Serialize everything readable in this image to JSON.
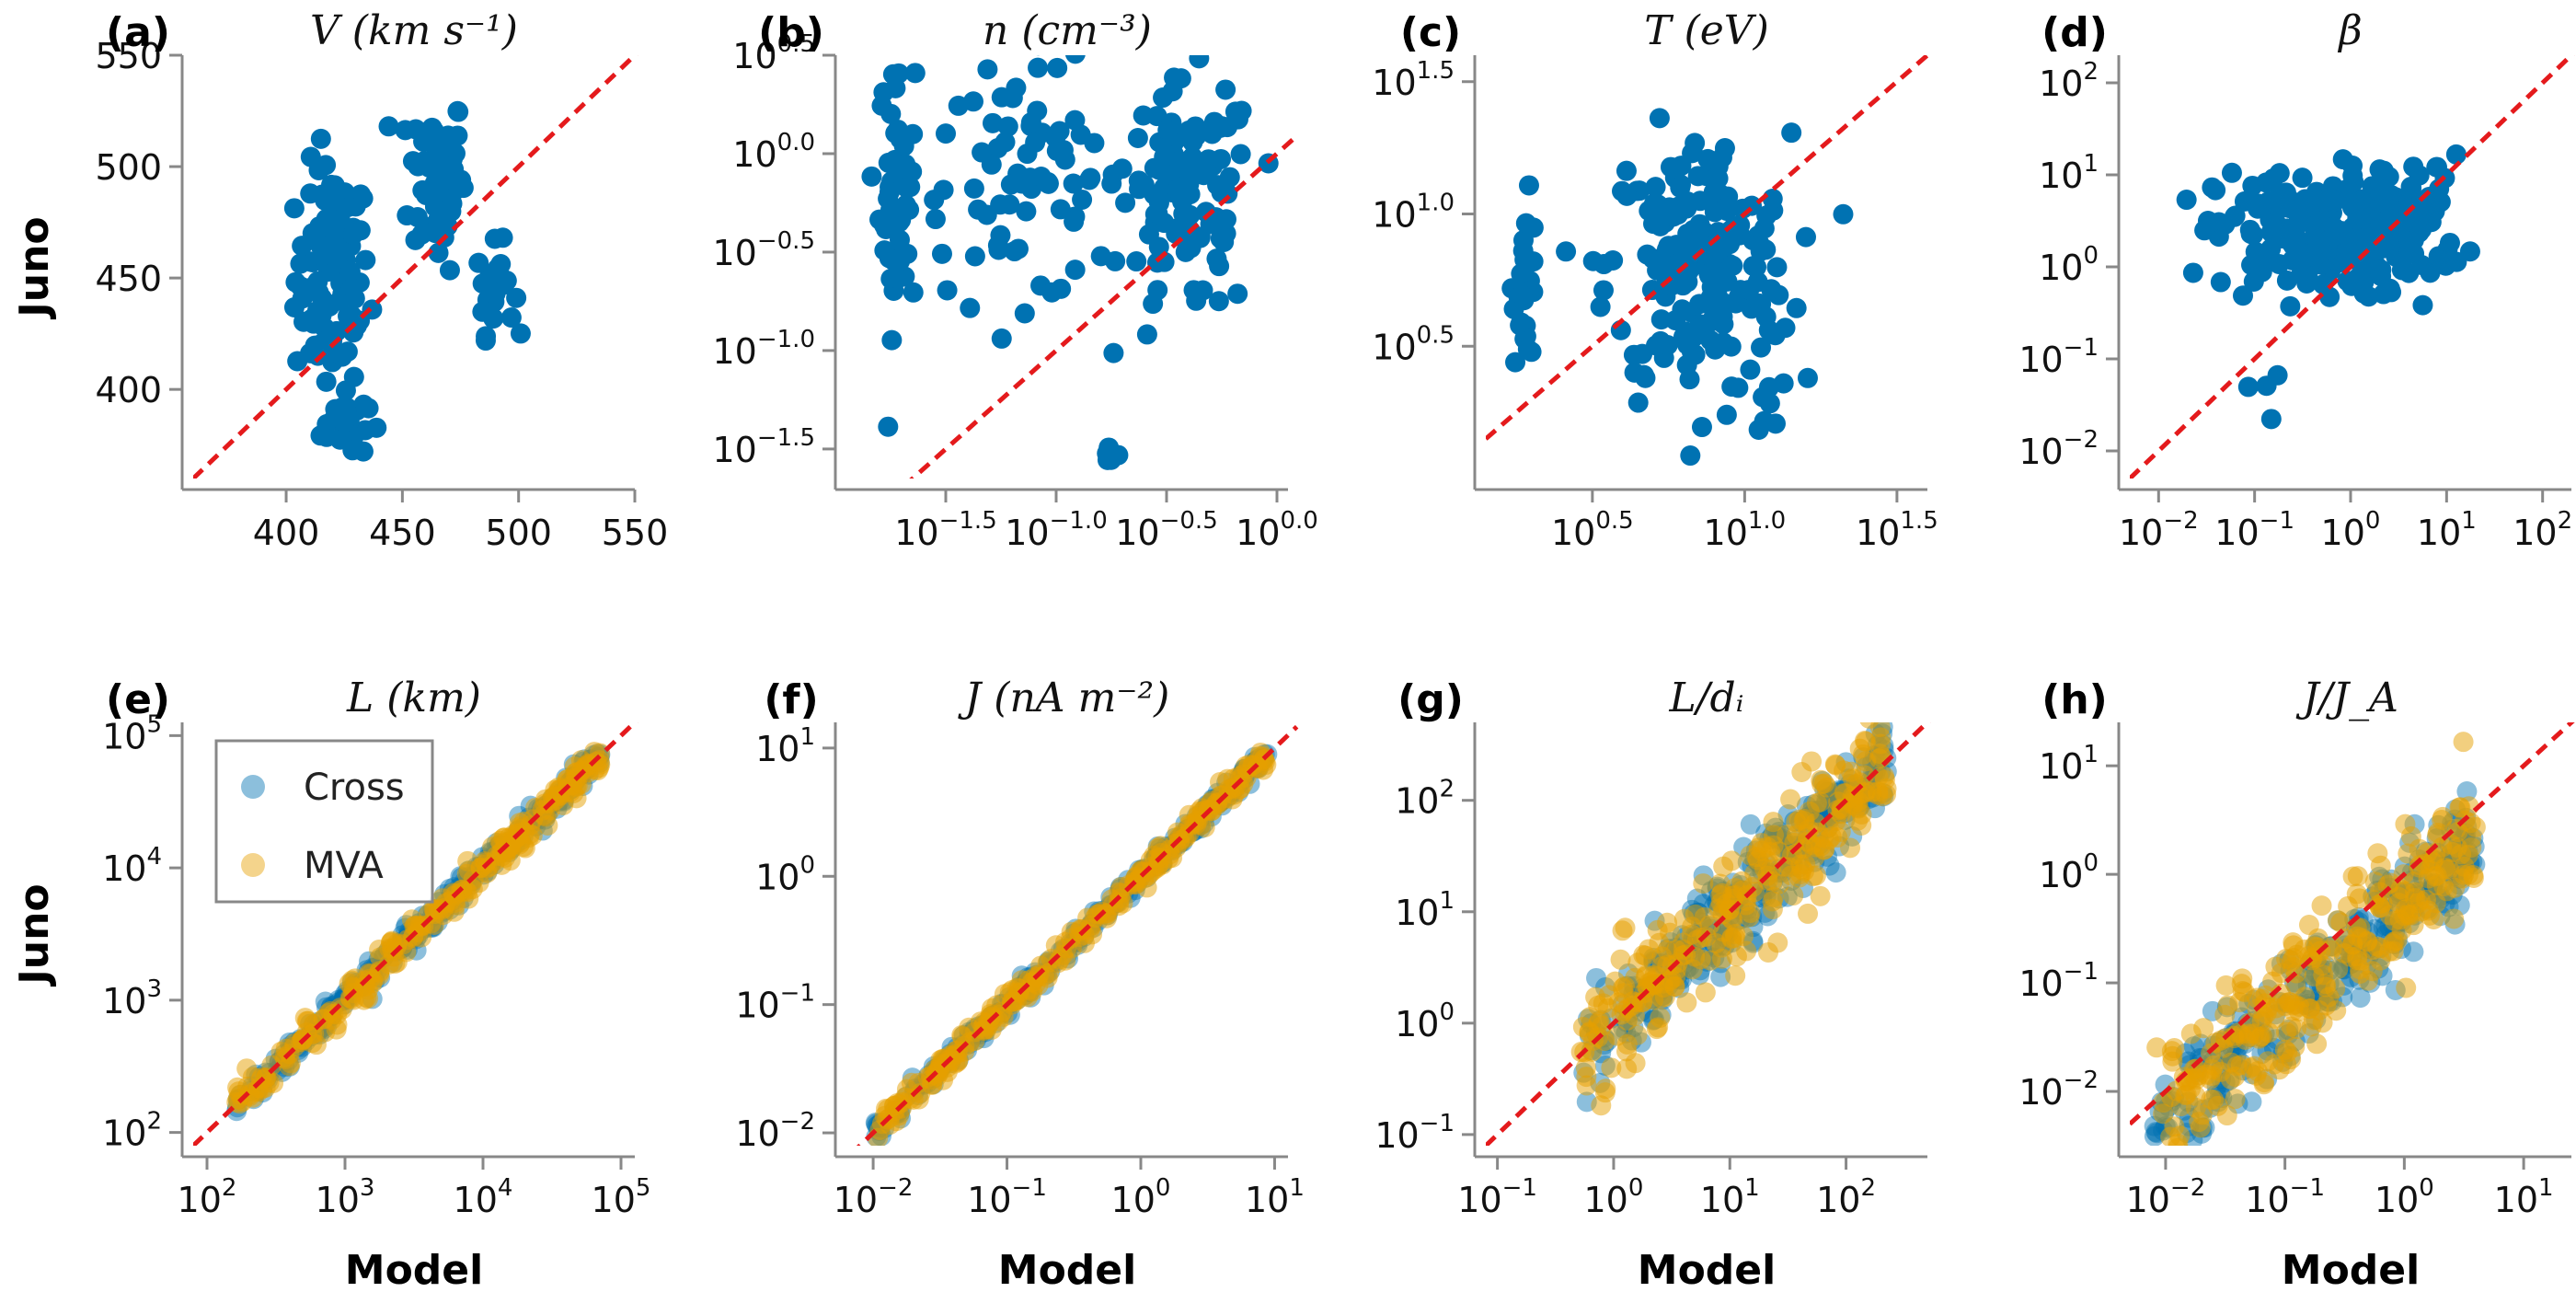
{
  "colors": {
    "cross": "#0072B2",
    "mva": "#E69F00",
    "identity": "#E41A1C",
    "axis": "#888888"
  },
  "shared": {
    "ylabel": "Juno",
    "xlabel": "Model",
    "legend": {
      "entries": [
        "Cross",
        "MVA"
      ],
      "placement": "upper-left of panel (e)"
    }
  },
  "chart_data": [
    {
      "id": "a",
      "letter": "(a)",
      "title": "V (km s⁻¹)",
      "type": "scatter",
      "scale": "linear",
      "xlim": [
        360,
        550
      ],
      "ylim": [
        360,
        550
      ],
      "xticks": [
        400,
        450,
        500,
        550
      ],
      "yticks": [
        400,
        450,
        500,
        550
      ],
      "xtick_labels": [
        "400",
        "450",
        "500",
        "550"
      ],
      "ytick_labels": [
        "400",
        "450",
        "500",
        "550"
      ],
      "identity_line": true,
      "show_ylabel": true,
      "show_xlabel": false,
      "series": [
        {
          "name": "Cross",
          "clusters": [
            {
              "cx": 420,
              "cy": 450,
              "sx": 8,
              "sy": 25,
              "n": 110
            },
            {
              "cx": 465,
              "cy": 495,
              "sx": 6,
              "sy": 20,
              "n": 70
            },
            {
              "cx": 490,
              "cy": 445,
              "sx": 4,
              "sy": 10,
              "n": 25
            },
            {
              "cx": 425,
              "cy": 385,
              "sx": 5,
              "sy": 8,
              "n": 25
            }
          ]
        }
      ]
    },
    {
      "id": "b",
      "letter": "(b)",
      "title": "n (cm⁻³)",
      "type": "scatter",
      "scale": "log",
      "xlim": [
        -1.95,
        0.05
      ],
      "ylim": [
        -1.65,
        0.5
      ],
      "xticks": [
        -1.5,
        -1.0,
        -0.5,
        0.0
      ],
      "yticks": [
        -1.5,
        -1.0,
        -0.5,
        0.0,
        0.5
      ],
      "xtick_labels": [
        "-1.5",
        "-1.0",
        "-0.5",
        "0.0"
      ],
      "ytick_labels": [
        "-1.5",
        "-1.0",
        "-0.5",
        "0.0",
        "0.5"
      ],
      "identity_line": true,
      "show_ylabel": false,
      "show_xlabel": false,
      "series": [
        {
          "name": "Cross",
          "clusters": [
            {
              "cx": -1.72,
              "cy": -0.2,
              "sx": 0.04,
              "sy": 0.35,
              "n": 50
            },
            {
              "cx": -1.15,
              "cy": -0.15,
              "sx": 0.25,
              "sy": 0.3,
              "n": 80
            },
            {
              "cx": -0.4,
              "cy": -0.25,
              "sx": 0.15,
              "sy": 0.3,
              "n": 110
            },
            {
              "cx": -0.75,
              "cy": -1.5,
              "sx": 0.02,
              "sy": 0.04,
              "n": 5
            }
          ]
        }
      ]
    },
    {
      "id": "c",
      "letter": "(c)",
      "title": "T (eV)",
      "type": "scatter",
      "scale": "log",
      "xlim": [
        0.15,
        1.6
      ],
      "ylim": [
        0.0,
        1.6
      ],
      "xticks": [
        0.5,
        1.0,
        1.5
      ],
      "yticks": [
        0.5,
        1.0,
        1.5
      ],
      "xtick_labels": [
        "0.5",
        "1.0",
        "1.5"
      ],
      "ytick_labels": [
        "0.5",
        "1.0",
        "1.5"
      ],
      "identity_line": true,
      "show_ylabel": false,
      "show_xlabel": false,
      "series": [
        {
          "name": "Cross",
          "clusters": [
            {
              "cx": 0.28,
              "cy": 0.75,
              "sx": 0.02,
              "sy": 0.15,
              "n": 25
            },
            {
              "cx": 0.85,
              "cy": 0.8,
              "sx": 0.15,
              "sy": 0.25,
              "n": 200
            },
            {
              "cx": 1.08,
              "cy": 0.35,
              "sx": 0.02,
              "sy": 0.1,
              "n": 8
            }
          ]
        }
      ]
    },
    {
      "id": "d",
      "letter": "(d)",
      "title": "β",
      "type": "scatter",
      "scale": "log",
      "xlim": [
        -2.3,
        2.3
      ],
      "ylim": [
        -2.3,
        2.3
      ],
      "xticks": [
        -2,
        -1,
        0,
        1,
        2
      ],
      "yticks": [
        -2,
        -1,
        0,
        1,
        2
      ],
      "xtick_labels": [
        "-2",
        "-1",
        "0",
        "1",
        "2"
      ],
      "ytick_labels": [
        "-2",
        "-1",
        "0",
        "1",
        "2"
      ],
      "identity_line": true,
      "show_ylabel": false,
      "show_xlabel": false,
      "series": [
        {
          "name": "Cross",
          "clusters": [
            {
              "cx": -0.4,
              "cy": 0.35,
              "sx": 0.5,
              "sy": 0.35,
              "n": 180
            },
            {
              "cx": 0.6,
              "cy": 0.5,
              "sx": 0.3,
              "sy": 0.35,
              "n": 70
            },
            {
              "cx": -0.9,
              "cy": -1.4,
              "sx": 0.15,
              "sy": 0.25,
              "n": 4
            }
          ]
        }
      ]
    },
    {
      "id": "e",
      "letter": "(e)",
      "title": "L (km)",
      "type": "scatter",
      "scale": "log",
      "xlim": [
        1.9,
        5.1
      ],
      "ylim": [
        1.9,
        5.1
      ],
      "xticks": [
        2,
        3,
        4,
        5
      ],
      "yticks": [
        2,
        3,
        4,
        5
      ],
      "xtick_labels": [
        "2",
        "3",
        "4",
        "5"
      ],
      "ytick_labels": [
        "2",
        "3",
        "4",
        "5"
      ],
      "identity_line": true,
      "show_ylabel": true,
      "show_xlabel": true,
      "legend": true,
      "series": [
        {
          "name": "Cross",
          "diag": {
            "x0": 2.2,
            "x1": 4.85,
            "spread": 0.05,
            "n": 250
          }
        },
        {
          "name": "MVA",
          "diag": {
            "x0": 2.2,
            "x1": 4.85,
            "spread": 0.06,
            "n": 250
          }
        }
      ]
    },
    {
      "id": "f",
      "letter": "(f)",
      "title": "J (nA m⁻²)",
      "type": "scatter",
      "scale": "log",
      "xlim": [
        -2.2,
        1.1
      ],
      "ylim": [
        -2.1,
        1.2
      ],
      "xticks": [
        -2,
        -1,
        0,
        1
      ],
      "yticks": [
        -2,
        -1,
        0,
        1
      ],
      "xtick_labels": [
        "-2",
        "-1",
        "0",
        "1"
      ],
      "ytick_labels": [
        "-2",
        "-1",
        "0",
        "1"
      ],
      "identity_line": true,
      "show_ylabel": false,
      "show_xlabel": true,
      "series": [
        {
          "name": "Cross",
          "diag": {
            "x0": -2.0,
            "x1": 0.95,
            "spread": 0.04,
            "n": 250
          }
        },
        {
          "name": "MVA",
          "diag": {
            "x0": -2.0,
            "x1": 0.95,
            "spread": 0.05,
            "n": 250
          }
        }
      ]
    },
    {
      "id": "g",
      "letter": "(g)",
      "title": "L/dᵢ",
      "type": "scatter",
      "scale": "log",
      "xlim": [
        -1.1,
        2.7
      ],
      "ylim": [
        -1.1,
        2.7
      ],
      "xticks": [
        -1,
        0,
        1,
        2
      ],
      "yticks": [
        -1,
        0,
        1,
        2
      ],
      "xtick_labels": [
        "-1",
        "0",
        "1",
        "2"
      ],
      "ytick_labels": [
        "-1",
        "0",
        "1",
        "2"
      ],
      "identity_line": true,
      "show_ylabel": false,
      "show_xlabel": true,
      "series": [
        {
          "name": "Cross",
          "diag": {
            "x0": -0.3,
            "x1": 2.35,
            "spread": 0.22,
            "n": 280
          }
        },
        {
          "name": "MVA",
          "diag": {
            "x0": -0.3,
            "x1": 2.35,
            "spread": 0.26,
            "n": 280
          }
        }
      ]
    },
    {
      "id": "h",
      "letter": "(h)",
      "title": "J/J_A",
      "type": "scatter",
      "scale": "log",
      "xlim": [
        -2.3,
        1.4
      ],
      "ylim": [
        -2.5,
        1.4
      ],
      "xticks": [
        -2,
        -1,
        0,
        1
      ],
      "yticks": [
        -2,
        -1,
        0,
        1
      ],
      "xtick_labels": [
        "-2",
        "-1",
        "0",
        "1"
      ],
      "ytick_labels": [
        "-2",
        "-1",
        "0",
        "1"
      ],
      "identity_line": true,
      "show_ylabel": false,
      "show_xlabel": true,
      "series": [
        {
          "name": "Cross",
          "diag": {
            "x0": -2.1,
            "x1": 0.6,
            "spread": 0.25,
            "offset": -0.25,
            "n": 280
          }
        },
        {
          "name": "MVA",
          "diag": {
            "x0": -2.1,
            "x1": 0.6,
            "spread": 0.28,
            "offset": -0.2,
            "n": 280
          }
        }
      ]
    }
  ]
}
